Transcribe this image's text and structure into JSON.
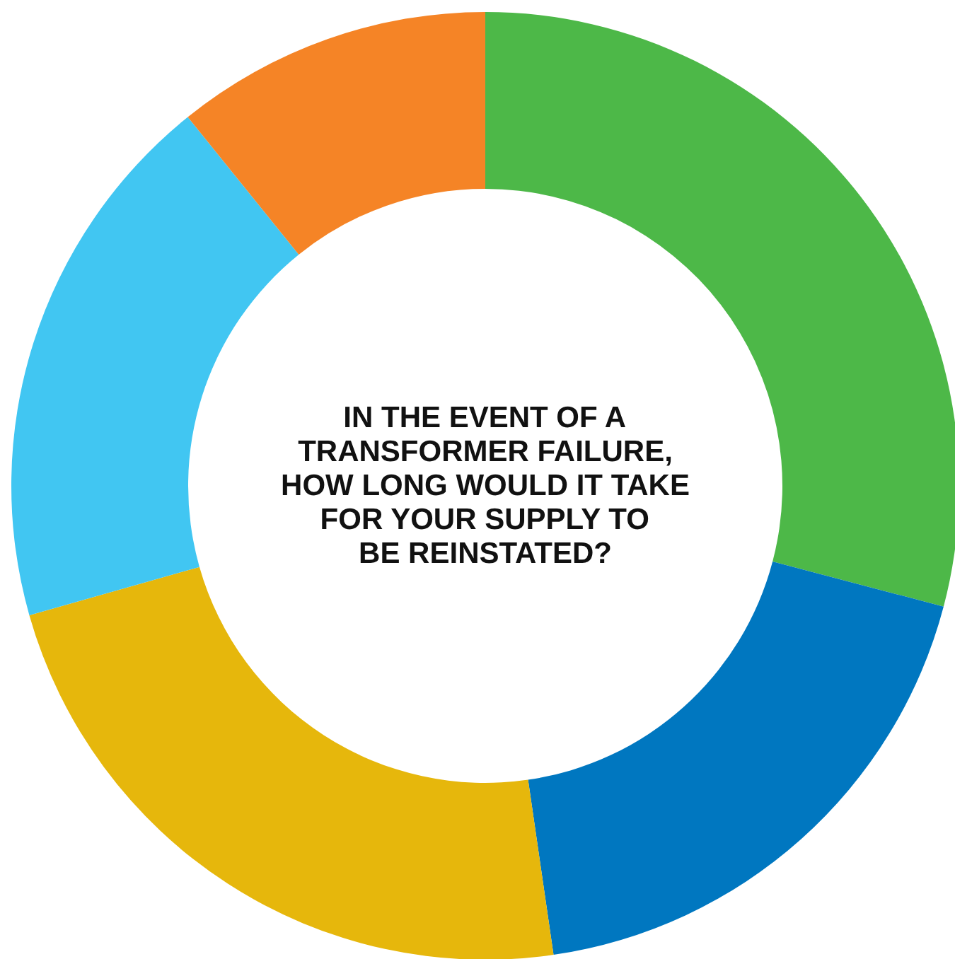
{
  "chart_data": {
    "type": "donut",
    "title": "IN THE EVENT OF A\nTRANSFORMER FAILURE,\nHOW LONG WOULD IT TAKE\nFOR YOUR SUPPLY TO\nBE REINSTATED?",
    "categories": [
      null,
      null,
      null,
      null,
      null
    ],
    "values": [
      29.1,
      18.6,
      22.9,
      18.6,
      10.8
    ],
    "colors": [
      "#4db848",
      "#0077c0",
      "#e6b70c",
      "#41c6f2",
      "#f58426"
    ]
  }
}
